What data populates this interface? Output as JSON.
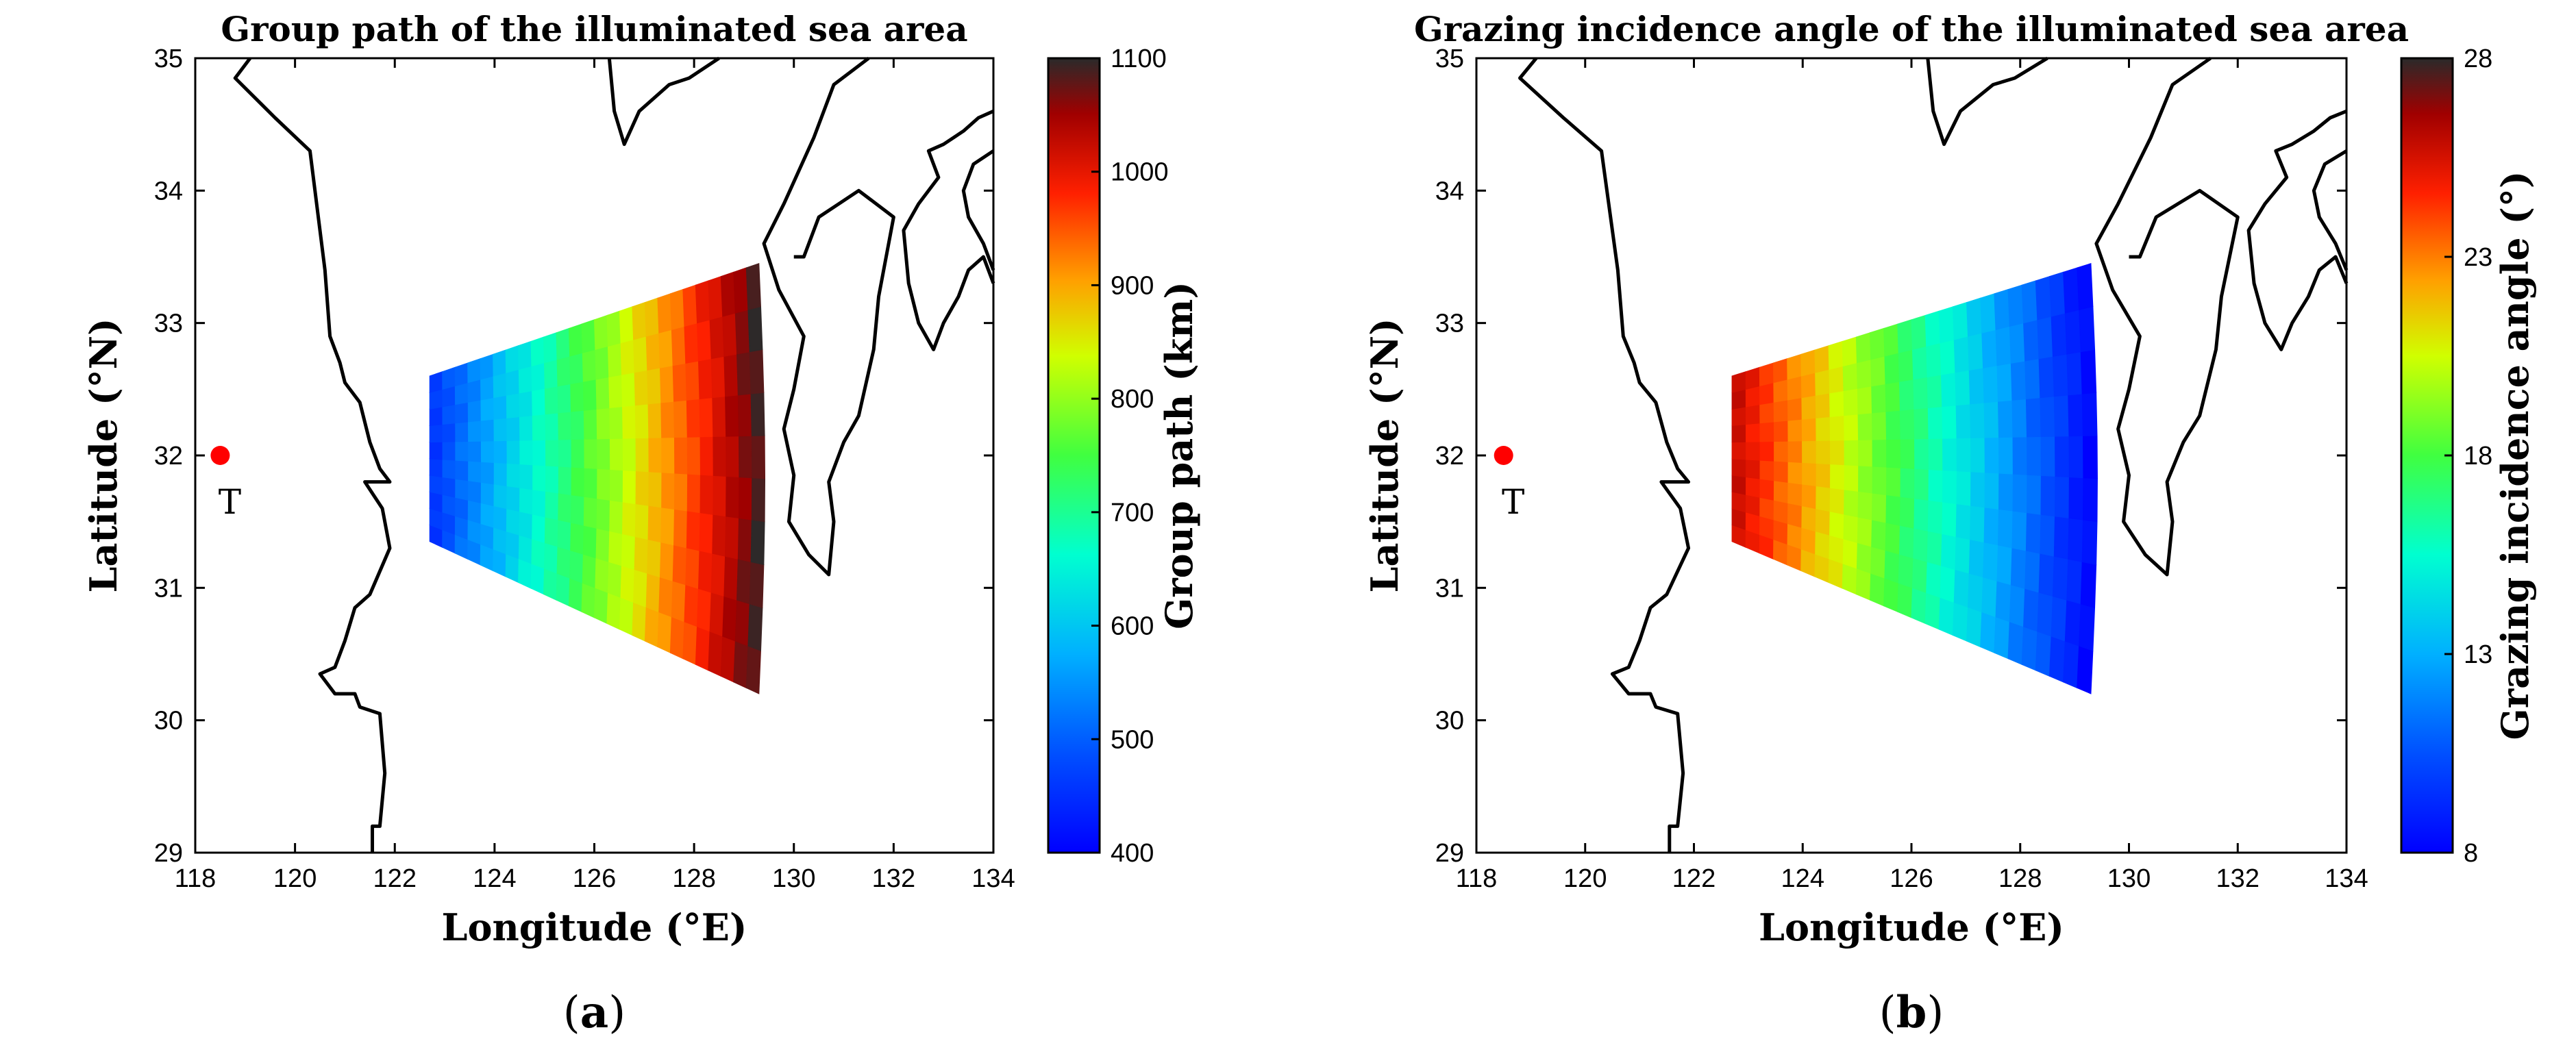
{
  "chart_data": [
    {
      "type": "heatmap",
      "panel": "(a)",
      "panel_letter": "a",
      "title": "Group path of the illuminated sea area",
      "xlabel": "Longitude (°E)",
      "ylabel": "Latitude (°N)",
      "xlim": [
        118,
        134
      ],
      "ylim": [
        29,
        35
      ],
      "xticks": [
        "118",
        "120",
        "122",
        "124",
        "126",
        "128",
        "130",
        "132",
        "134"
      ],
      "yticks": [
        "29",
        "30",
        "31",
        "32",
        "33",
        "34",
        "35"
      ],
      "colorbar": {
        "label": "Group path (km)",
        "range": [
          400,
          1100
        ],
        "ticks": [
          "400",
          "500",
          "600",
          "700",
          "800",
          "900",
          "1000",
          "1100"
        ]
      },
      "transmitter": {
        "label": "T",
        "lon": 118.5,
        "lat": 32.0
      },
      "sector": {
        "near_edge": {
          "lon": 122.7,
          "lat_min": 31.35,
          "lat_max": 32.6
        },
        "far_edge": {
          "lon": 129.3,
          "lat_min": 30.2,
          "lat_max": 33.45
        },
        "gradient": "increases from near edge (≈450 km) to far edge (≈1100 km)",
        "value_near": 450,
        "value_far": 1100
      }
    },
    {
      "type": "heatmap",
      "panel": "(b)",
      "panel_letter": "b",
      "title": "Grazing incidence angle of the illuminated sea area",
      "xlabel": "Longitude (°E)",
      "ylabel": "Latitude (°N)",
      "xlim": [
        118,
        134
      ],
      "ylim": [
        29,
        35
      ],
      "xticks": [
        "118",
        "120",
        "122",
        "124",
        "126",
        "128",
        "130",
        "132",
        "134"
      ],
      "yticks": [
        "29",
        "30",
        "31",
        "32",
        "33",
        "34",
        "35"
      ],
      "colorbar": {
        "label": "Grazing incidence angle (°)",
        "range": [
          8,
          28
        ],
        "ticks": [
          "8",
          "13",
          "18",
          "23",
          "28"
        ]
      },
      "transmitter": {
        "label": "T",
        "lon": 118.5,
        "lat": 32.0
      },
      "sector": {
        "near_edge": {
          "lon": 122.7,
          "lat_min": 31.35,
          "lat_max": 32.6
        },
        "far_edge": {
          "lon": 129.3,
          "lat_min": 30.2,
          "lat_max": 33.45
        },
        "gradient": "decreases from near edge (≈26°) to far edge (≈8°)",
        "value_near": 26,
        "value_far": 8
      }
    }
  ],
  "colormap": [
    "#00008f",
    "#0000ff",
    "#0080ff",
    "#00ffff",
    "#80ff80",
    "#ffff00",
    "#ff8000",
    "#ff0000",
    "#800000",
    "#222222"
  ],
  "coastline_color": "#000000",
  "marker_color": "#ff0000"
}
